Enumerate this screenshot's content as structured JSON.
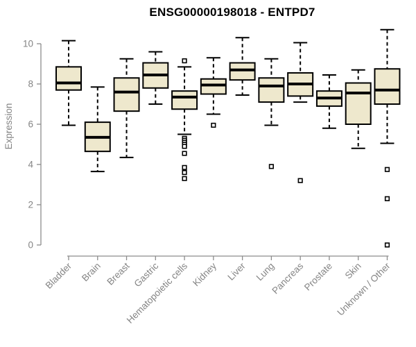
{
  "chart_data": {
    "type": "boxplot",
    "title": "ENSG00000198018 - ENTPD7",
    "ylabel": "Expression",
    "xlabel": "",
    "ylim": [
      0,
      10
    ],
    "yticks": [
      0,
      2,
      4,
      6,
      8,
      10
    ],
    "grid": false,
    "legend": null,
    "box_fill": "#EEE8CD",
    "box_stroke": "#000000",
    "axis_color": "#8C8C8C",
    "label_color": "#848484",
    "categories": [
      "Bladder",
      "Brain",
      "Breast",
      "Gastric",
      "Hematopoietic cells",
      "Kidney",
      "Liver",
      "Lung",
      "Pancreas",
      "Prostate",
      "Skin",
      "Unknown / Other"
    ],
    "series": [
      {
        "category": "Bladder",
        "whisker_low": 5.95,
        "q1": 7.7,
        "median": 8.05,
        "q3": 8.85,
        "whisker_high": 10.15,
        "outliers": []
      },
      {
        "category": "Brain",
        "whisker_low": 3.65,
        "q1": 4.65,
        "median": 5.35,
        "q3": 6.1,
        "whisker_high": 7.85,
        "outliers": []
      },
      {
        "category": "Breast",
        "whisker_low": 4.35,
        "q1": 6.65,
        "median": 7.6,
        "q3": 8.3,
        "whisker_high": 9.25,
        "outliers": []
      },
      {
        "category": "Gastric",
        "whisker_low": 7.0,
        "q1": 7.8,
        "median": 8.45,
        "q3": 9.05,
        "whisker_high": 9.6,
        "outliers": []
      },
      {
        "category": "Hematopoietic cells",
        "whisker_low": 5.5,
        "q1": 6.75,
        "median": 7.35,
        "q3": 7.65,
        "whisker_high": 8.85,
        "outliers": [
          9.15,
          5.3,
          5.2,
          5.1,
          5.0,
          4.9,
          4.55,
          3.85,
          3.6,
          3.3
        ]
      },
      {
        "category": "Kidney",
        "whisker_low": 6.5,
        "q1": 7.5,
        "median": 7.95,
        "q3": 8.25,
        "whisker_high": 9.3,
        "outliers": [
          5.95
        ]
      },
      {
        "category": "Liver",
        "whisker_low": 7.45,
        "q1": 8.2,
        "median": 8.7,
        "q3": 9.05,
        "whisker_high": 10.3,
        "outliers": []
      },
      {
        "category": "Lung",
        "whisker_low": 5.95,
        "q1": 7.1,
        "median": 7.9,
        "q3": 8.3,
        "whisker_high": 9.25,
        "outliers": [
          3.9
        ]
      },
      {
        "category": "Pancreas",
        "whisker_low": 7.1,
        "q1": 7.4,
        "median": 8.0,
        "q3": 8.55,
        "whisker_high": 10.05,
        "outliers": [
          3.2
        ]
      },
      {
        "category": "Prostate",
        "whisker_low": 5.8,
        "q1": 6.9,
        "median": 7.3,
        "q3": 7.65,
        "whisker_high": 8.45,
        "outliers": []
      },
      {
        "category": "Skin",
        "whisker_low": 4.8,
        "q1": 6.0,
        "median": 7.55,
        "q3": 8.05,
        "whisker_high": 8.7,
        "outliers": []
      },
      {
        "category": "Unknown / Other",
        "whisker_low": 5.05,
        "q1": 7.0,
        "median": 7.7,
        "q3": 8.75,
        "whisker_high": 10.7,
        "outliers": [
          3.75,
          2.3,
          0.0
        ]
      }
    ]
  }
}
